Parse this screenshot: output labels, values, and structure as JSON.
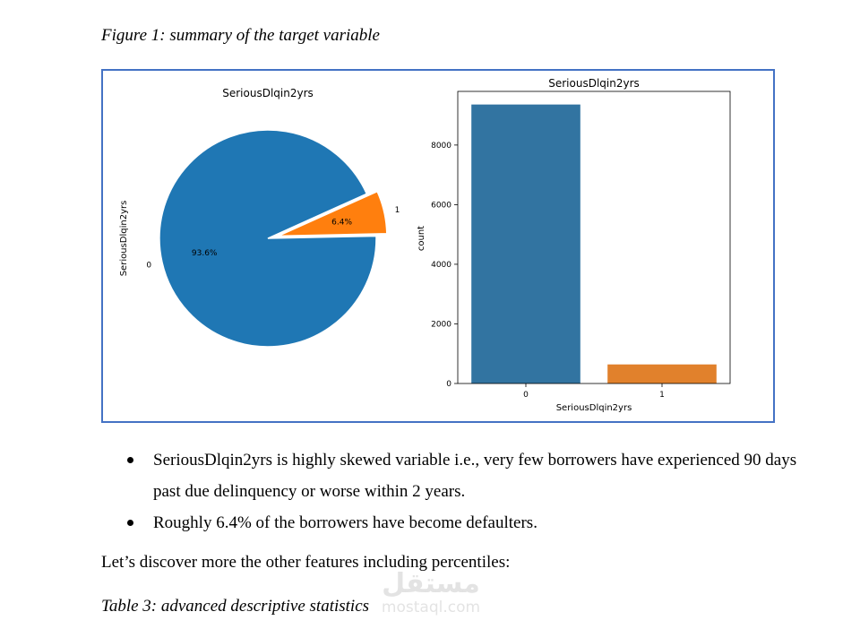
{
  "figure_caption": "Figure 1: summary of the target variable",
  "chart_data": [
    {
      "type": "pie",
      "title": "SeriousDlqin2yrs",
      "ylabel": "SeriousDlqin2yrs",
      "labels": [
        "0",
        "1"
      ],
      "values": [
        93.6,
        6.4
      ],
      "pct_labels": [
        "93.6%",
        "6.4%"
      ],
      "colors": [
        "#1f77b4",
        "#ff7f0e"
      ],
      "explode": [
        0,
        0.1
      ]
    },
    {
      "type": "bar",
      "title": "SeriousDlqin2yrs",
      "xlabel": "SeriousDlqin2yrs",
      "ylabel": "count",
      "categories": [
        "0",
        "1"
      ],
      "values": [
        9360,
        640
      ],
      "colors": [
        "#3274a1",
        "#e1812c"
      ],
      "ylim": [
        0,
        9800
      ],
      "yticks": [
        0,
        2000,
        4000,
        6000,
        8000
      ],
      "grid": false
    }
  ],
  "bullets": [
    "SeriousDlqin2yrs is highly skewed variable i.e., very few borrowers have experienced 90 days past due delinquency or worse within 2 years.",
    "Roughly 6.4% of the borrowers have become defaulters."
  ],
  "paragraph": "Let’s discover more the other features including percentiles:",
  "table_caption": "Table 3: advanced descriptive statistics",
  "watermark": {
    "logo": "مستقل",
    "url": "mostaql.com"
  }
}
